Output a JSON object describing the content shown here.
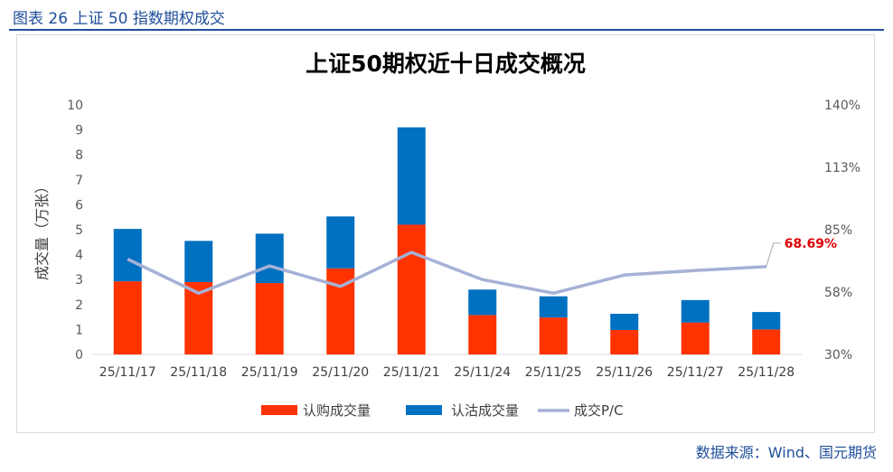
{
  "figure": {
    "caption": "图表 26 上证 50 指数期权成交",
    "source": "数据来源：Wind、国元期货"
  },
  "chart_data": {
    "type": "bar",
    "stacked": true,
    "title": "上证50期权近十日成交概况",
    "ylabel": "成交量（万张）",
    "ylim": [
      0,
      10
    ],
    "y_ticks": [
      "0",
      "1",
      "2",
      "3",
      "4",
      "5",
      "6",
      "7",
      "8",
      "9",
      "10"
    ],
    "y2lim": [
      30,
      140
    ],
    "y2_ticks": [
      "30%",
      "58%",
      "85%",
      "113%",
      "140%"
    ],
    "categories": [
      "25/11/17",
      "25/11/18",
      "25/11/19",
      "25/11/20",
      "25/11/21",
      "25/11/24",
      "25/11/25",
      "25/11/26",
      "25/11/27",
      "25/11/28"
    ],
    "series": [
      {
        "name": "认购成交量",
        "type": "bar",
        "axis": "left",
        "color": "#ff3300",
        "values": [
          2.93,
          2.9,
          2.86,
          3.45,
          5.2,
          1.58,
          1.48,
          0.98,
          1.28,
          1.0
        ]
      },
      {
        "name": "认沽成交量",
        "type": "bar",
        "axis": "left",
        "color": "#0070c0",
        "values": [
          2.1,
          1.65,
          1.98,
          2.08,
          3.9,
          1.02,
          0.85,
          0.65,
          0.9,
          0.7
        ]
      },
      {
        "name": "成交P/C",
        "type": "line",
        "axis": "right",
        "color": "#a6b1d6",
        "values": [
          72,
          57,
          69,
          60,
          75,
          63,
          57,
          65,
          67,
          68.69
        ]
      }
    ],
    "annotation": {
      "text": "68.69%",
      "color": "#e00000"
    },
    "legend_position": "bottom",
    "grid": false
  }
}
